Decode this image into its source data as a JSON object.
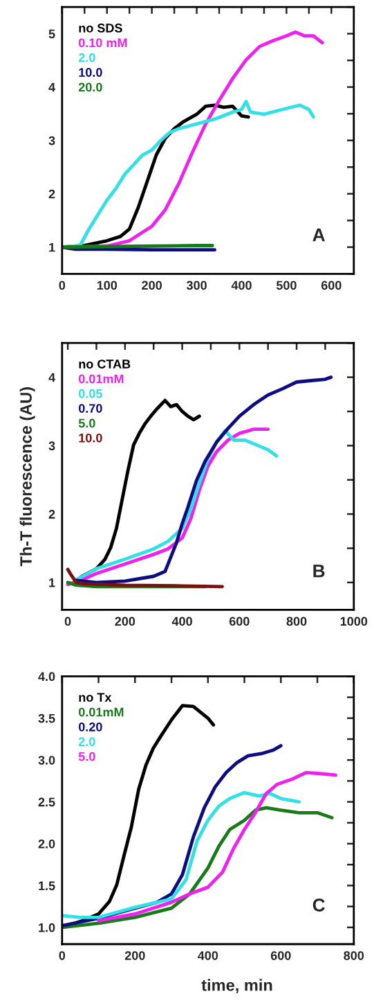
{
  "chart_data": [
    {
      "type": "line",
      "annotations": [
        "A"
      ],
      "legend": "top left",
      "grid": false,
      "xlim": [
        0,
        650
      ],
      "ylim": [
        0.5,
        5.5
      ],
      "xticks": [
        0,
        {
          "value": 50,
          "label": null
        },
        100,
        {
          "value": 150,
          "label": null
        },
        200,
        {
          "value": 250,
          "label": null
        },
        300,
        {
          "value": 350,
          "label": null
        },
        400,
        {
          "value": 450,
          "label": null
        },
        500,
        {
          "value": 550,
          "label": null
        },
        600
      ],
      "yticks": [
        {
          "value": 0.5,
          "label": null
        },
        1,
        {
          "value": 1.5,
          "label": null
        },
        2,
        {
          "value": 2.5,
          "label": null
        },
        3,
        {
          "value": 3.5,
          "label": null
        },
        4,
        {
          "value": 4.5,
          "label": null
        },
        5,
        {
          "value": 5.5,
          "label": null
        }
      ],
      "series": [
        {
          "name": "no SDS",
          "color": "#000000",
          "x": [
            0,
            50,
            100,
            130,
            150,
            170,
            190,
            210,
            230,
            250,
            270,
            300,
            320,
            340,
            360,
            380,
            400,
            415
          ],
          "values": [
            1.0,
            1.03,
            1.12,
            1.2,
            1.34,
            1.75,
            2.24,
            2.73,
            3.04,
            3.22,
            3.35,
            3.49,
            3.64,
            3.66,
            3.62,
            3.64,
            3.46,
            3.44
          ]
        },
        {
          "name": "0.10 mM",
          "color": "#ee22ee",
          "x": [
            0,
            100,
            150,
            200,
            230,
            260,
            290,
            320,
            350,
            380,
            410,
            440,
            470,
            500,
            520,
            540,
            560,
            580
          ],
          "values": [
            1.0,
            1.02,
            1.12,
            1.39,
            1.7,
            2.19,
            2.77,
            3.31,
            3.75,
            4.16,
            4.51,
            4.76,
            4.87,
            4.96,
            5.03,
            4.96,
            4.96,
            4.83
          ]
        },
        {
          "name": "2.0",
          "color": "#33e0e6",
          "x": [
            0,
            40,
            60,
            80,
            100,
            120,
            140,
            160,
            180,
            200,
            220,
            240,
            260,
            300,
            340,
            380,
            400,
            410,
            420,
            450,
            500,
            530,
            550,
            560
          ],
          "values": [
            1.0,
            1.03,
            1.34,
            1.61,
            1.88,
            2.1,
            2.37,
            2.55,
            2.73,
            2.82,
            3.0,
            3.15,
            3.22,
            3.31,
            3.4,
            3.53,
            3.58,
            3.73,
            3.53,
            3.49,
            3.6,
            3.66,
            3.58,
            3.44
          ]
        },
        {
          "name": "10.0",
          "color": "#0d0d80",
          "x": [
            0,
            30,
            100,
            200,
            300,
            340
          ],
          "values": [
            1.0,
            0.96,
            0.96,
            0.95,
            0.95,
            0.95
          ]
        },
        {
          "name": "20.0",
          "color": "#1a7a1a",
          "x": [
            0,
            100,
            200,
            300,
            335
          ],
          "values": [
            1.0,
            1.01,
            1.02,
            1.03,
            1.03
          ]
        }
      ]
    },
    {
      "type": "line",
      "ylabel": "Th-T fluorescence (AU)",
      "annotations": [
        "B"
      ],
      "legend": "top left",
      "grid": false,
      "xlim": [
        -20,
        1000
      ],
      "ylim": [
        0.6,
        4.5
      ],
      "xticks": [
        0,
        {
          "value": 100,
          "label": null
        },
        200,
        {
          "value": 300,
          "label": null
        },
        400,
        {
          "value": 500,
          "label": null
        },
        600,
        {
          "value": 700,
          "label": null
        },
        800,
        {
          "value": 900,
          "label": null
        },
        1000
      ],
      "yticks": [
        1,
        {
          "value": 1.5,
          "label": null
        },
        2,
        {
          "value": 2.5,
          "label": null
        },
        3,
        {
          "value": 3.5,
          "label": null
        },
        4,
        {
          "value": 4.5,
          "label": null
        }
      ],
      "series": [
        {
          "name": "no CTAB",
          "color": "#000000",
          "x": [
            20,
            50,
            100,
            130,
            150,
            170,
            190,
            210,
            230,
            250,
            270,
            290,
            310,
            340,
            360,
            380,
            400,
            420,
            440,
            460
          ],
          "values": [
            1.0,
            1.09,
            1.2,
            1.34,
            1.51,
            1.79,
            2.21,
            2.63,
            3.01,
            3.18,
            3.32,
            3.43,
            3.53,
            3.66,
            3.57,
            3.6,
            3.5,
            3.43,
            3.38,
            3.43
          ]
        },
        {
          "name": "0.01mM",
          "color": "#ee22ee",
          "x": [
            0,
            50,
            100,
            200,
            300,
            350,
            400,
            430,
            460,
            490,
            520,
            560,
            600,
            650,
            700
          ],
          "values": [
            0.97,
            1.04,
            1.13,
            1.27,
            1.41,
            1.49,
            1.65,
            1.93,
            2.35,
            2.7,
            2.91,
            3.08,
            3.18,
            3.24,
            3.24
          ]
        },
        {
          "name": "0.05",
          "color": "#33e0e6",
          "x": [
            30,
            100,
            200,
            300,
            350,
            400,
            430,
            460,
            490,
            520,
            550,
            580,
            620,
            660,
            700,
            730
          ],
          "values": [
            1.04,
            1.2,
            1.34,
            1.49,
            1.6,
            1.79,
            2.07,
            2.45,
            2.8,
            3.05,
            3.22,
            3.08,
            3.08,
            3.01,
            2.94,
            2.85
          ]
        },
        {
          "name": "0.70",
          "color": "#0d0d80",
          "x": [
            30,
            100,
            200,
            300,
            340,
            360,
            380,
            400,
            420,
            450,
            480,
            520,
            560,
            600,
            650,
            700,
            750,
            800,
            850,
            900,
            920
          ],
          "values": [
            1.03,
            1.0,
            1.02,
            1.09,
            1.16,
            1.37,
            1.58,
            1.86,
            2.1,
            2.49,
            2.77,
            3.05,
            3.25,
            3.43,
            3.6,
            3.74,
            3.83,
            3.93,
            3.95,
            3.97,
            4.0
          ]
        },
        {
          "name": "5.0",
          "color": "#1a7a1a",
          "x": [
            0,
            30,
            100,
            200,
            300,
            400,
            480
          ],
          "values": [
            1.0,
            0.96,
            0.94,
            0.94,
            0.94,
            0.94,
            0.94
          ]
        },
        {
          "name": "10.0",
          "color": "#7a1010",
          "x": [
            0,
            10,
            30,
            60,
            200,
            400,
            540
          ],
          "values": [
            1.19,
            1.12,
            1.0,
            0.98,
            0.96,
            0.95,
            0.94
          ]
        }
      ]
    },
    {
      "type": "line",
      "xlabel": "time, min",
      "annotations": [
        "C"
      ],
      "legend": "top left",
      "grid": false,
      "xlim": [
        0,
        800
      ],
      "ylim": [
        0.8,
        4.0
      ],
      "xticks": [
        0,
        {
          "value": 100,
          "label": null
        },
        200,
        {
          "value": 300,
          "label": null
        },
        400,
        {
          "value": 500,
          "label": null
        },
        600,
        {
          "value": 700,
          "label": null
        },
        800
      ],
      "yticks": [
        {
          "value": 1.0,
          "label": "1.0"
        },
        {
          "value": 1.25,
          "label": null
        },
        1.5,
        {
          "value": 1.75,
          "label": null
        },
        {
          "value": 2.0,
          "label": "2.0"
        },
        {
          "value": 2.25,
          "label": null
        },
        2.5,
        {
          "value": 2.75,
          "label": null
        },
        {
          "value": 3.0,
          "label": "3.0"
        },
        {
          "value": 3.25,
          "label": null
        },
        3.5,
        {
          "value": 3.75,
          "label": null
        },
        {
          "value": 4.0,
          "label": "4.0"
        }
      ],
      "series": [
        {
          "name": "no Tx",
          "color": "#000000",
          "x": [
            0,
            50,
            100,
            130,
            150,
            170,
            190,
            210,
            230,
            250,
            270,
            300,
            330,
            360,
            380,
            400,
            415
          ],
          "values": [
            1.0,
            1.07,
            1.16,
            1.31,
            1.51,
            1.86,
            2.2,
            2.65,
            2.94,
            3.14,
            3.28,
            3.48,
            3.65,
            3.64,
            3.57,
            3.5,
            3.42
          ]
        },
        {
          "name": "0.01mM",
          "color": "#1a7a1a",
          "x": [
            0,
            100,
            200,
            300,
            350,
            400,
            430,
            460,
            500,
            530,
            560,
            600,
            650,
            700,
            740
          ],
          "values": [
            1.0,
            1.05,
            1.12,
            1.23,
            1.4,
            1.71,
            1.97,
            2.17,
            2.28,
            2.4,
            2.43,
            2.4,
            2.37,
            2.37,
            2.31
          ]
        },
        {
          "name": "0.20",
          "color": "#0d0d80",
          "x": [
            0,
            100,
            200,
            260,
            300,
            330,
            360,
            390,
            420,
            450,
            480,
            510,
            550,
            580,
            600
          ],
          "values": [
            1.02,
            1.11,
            1.23,
            1.3,
            1.4,
            1.63,
            2.08,
            2.43,
            2.68,
            2.85,
            2.97,
            3.05,
            3.08,
            3.12,
            3.17
          ]
        },
        {
          "name": "2.0",
          "color": "#33e0e6",
          "x": [
            0,
            50,
            100,
            200,
            300,
            340,
            370,
            400,
            430,
            460,
            500,
            540,
            570,
            600,
            650
          ],
          "values": [
            1.14,
            1.12,
            1.12,
            1.24,
            1.34,
            1.57,
            2.03,
            2.28,
            2.45,
            2.54,
            2.61,
            2.57,
            2.6,
            2.54,
            2.5
          ]
        },
        {
          "name": "5.0",
          "color": "#ee22ee",
          "x": [
            100,
            200,
            300,
            350,
            400,
            440,
            470,
            500,
            530,
            560,
            590,
            630,
            670,
            700,
            750
          ],
          "values": [
            1.08,
            1.16,
            1.3,
            1.4,
            1.48,
            1.66,
            1.94,
            2.17,
            2.37,
            2.6,
            2.71,
            2.77,
            2.85,
            2.84,
            2.82
          ]
        }
      ]
    }
  ]
}
